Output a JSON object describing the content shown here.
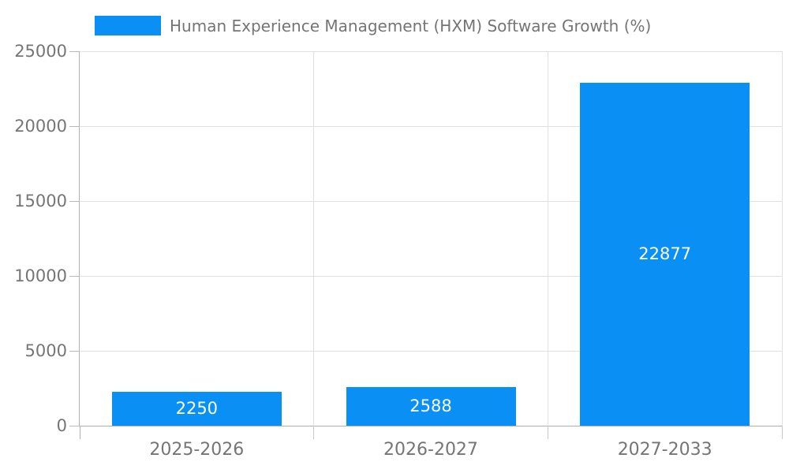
{
  "chart_data": {
    "type": "bar",
    "title": "Human Experience Management (HXM) Software Growth (%)",
    "categories": [
      "2025-2026",
      "2026-2027",
      "2027-2033"
    ],
    "values": [
      2250,
      2588,
      22877
    ],
    "bar_labels": [
      "2250",
      "2588",
      "22877"
    ],
    "xlabel": "",
    "ylabel": "",
    "ylim": [
      0,
      25000
    ],
    "yticks": [
      0,
      5000,
      10000,
      15000,
      20000,
      25000
    ],
    "grid": true,
    "legend_position": "top",
    "colors": {
      "bar": "#0a90f5",
      "grid": "#e0e0e0",
      "axis": "#b0b0b0",
      "text": "#757575",
      "bar_label": "#ffffff",
      "background": "#ffffff"
    }
  }
}
